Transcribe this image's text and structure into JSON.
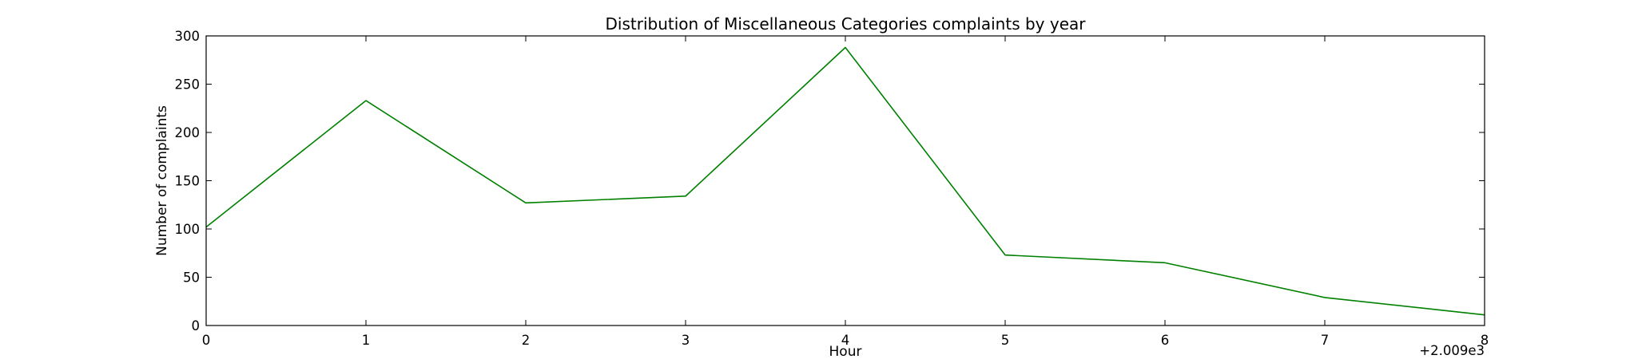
{
  "chart_data": {
    "type": "line",
    "title": "Distribution of  Miscellaneous Categories complaints by year",
    "xlabel": "Hour",
    "ylabel": "Number of complaints",
    "x_offset_label": "+2.009e3",
    "xlim": [
      0,
      8
    ],
    "ylim": [
      0,
      300
    ],
    "x_ticks": [
      0,
      1,
      2,
      3,
      4,
      5,
      6,
      7,
      8
    ],
    "y_ticks": [
      0,
      50,
      100,
      150,
      200,
      250,
      300
    ],
    "grid": false,
    "series": [
      {
        "color": "#008000",
        "x": [
          0,
          1,
          2,
          3,
          4,
          5,
          6,
          7,
          8
        ],
        "values": [
          102,
          233,
          127,
          134,
          288,
          73,
          65,
          29,
          11
        ]
      }
    ]
  }
}
